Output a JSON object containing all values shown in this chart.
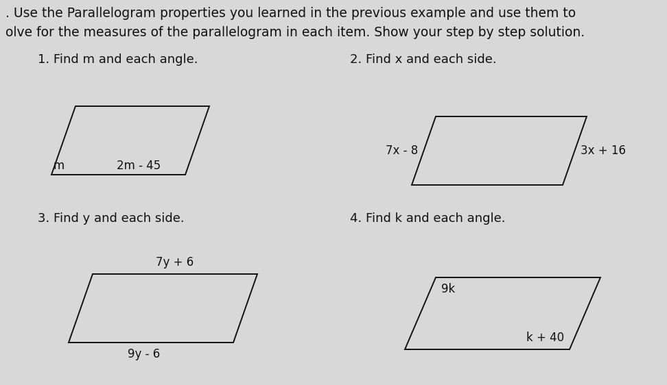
{
  "background_color": "#d8d8d8",
  "header_line1": ". Use the Parallelogram properties you learned in the previous example and use them to",
  "header_line2": "olve for the measures of the parallelogram in each item. Show your step by step solution.",
  "font_size_header": 13.5,
  "font_size_title": 13,
  "font_size_label": 12,
  "text_color": "#111111",
  "shape_color": "#111111",
  "shape_linewidth": 1.4,
  "p1_title": "1. Find m and each angle.",
  "p1_label_corner": "m",
  "p1_label_bottom": "2m - 45",
  "p2_title": "2. Find x and each side.",
  "p2_label_left": "7x - 8",
  "p2_label_right": "3x + 16",
  "p3_title": "3. Find y and each side.",
  "p3_label_top": "7y + 6",
  "p3_label_bottom": "9y - 6",
  "p4_title": "4. Find k and each angle.",
  "p4_label_topleft": "9k",
  "p4_label_bottomright": "k + 40"
}
